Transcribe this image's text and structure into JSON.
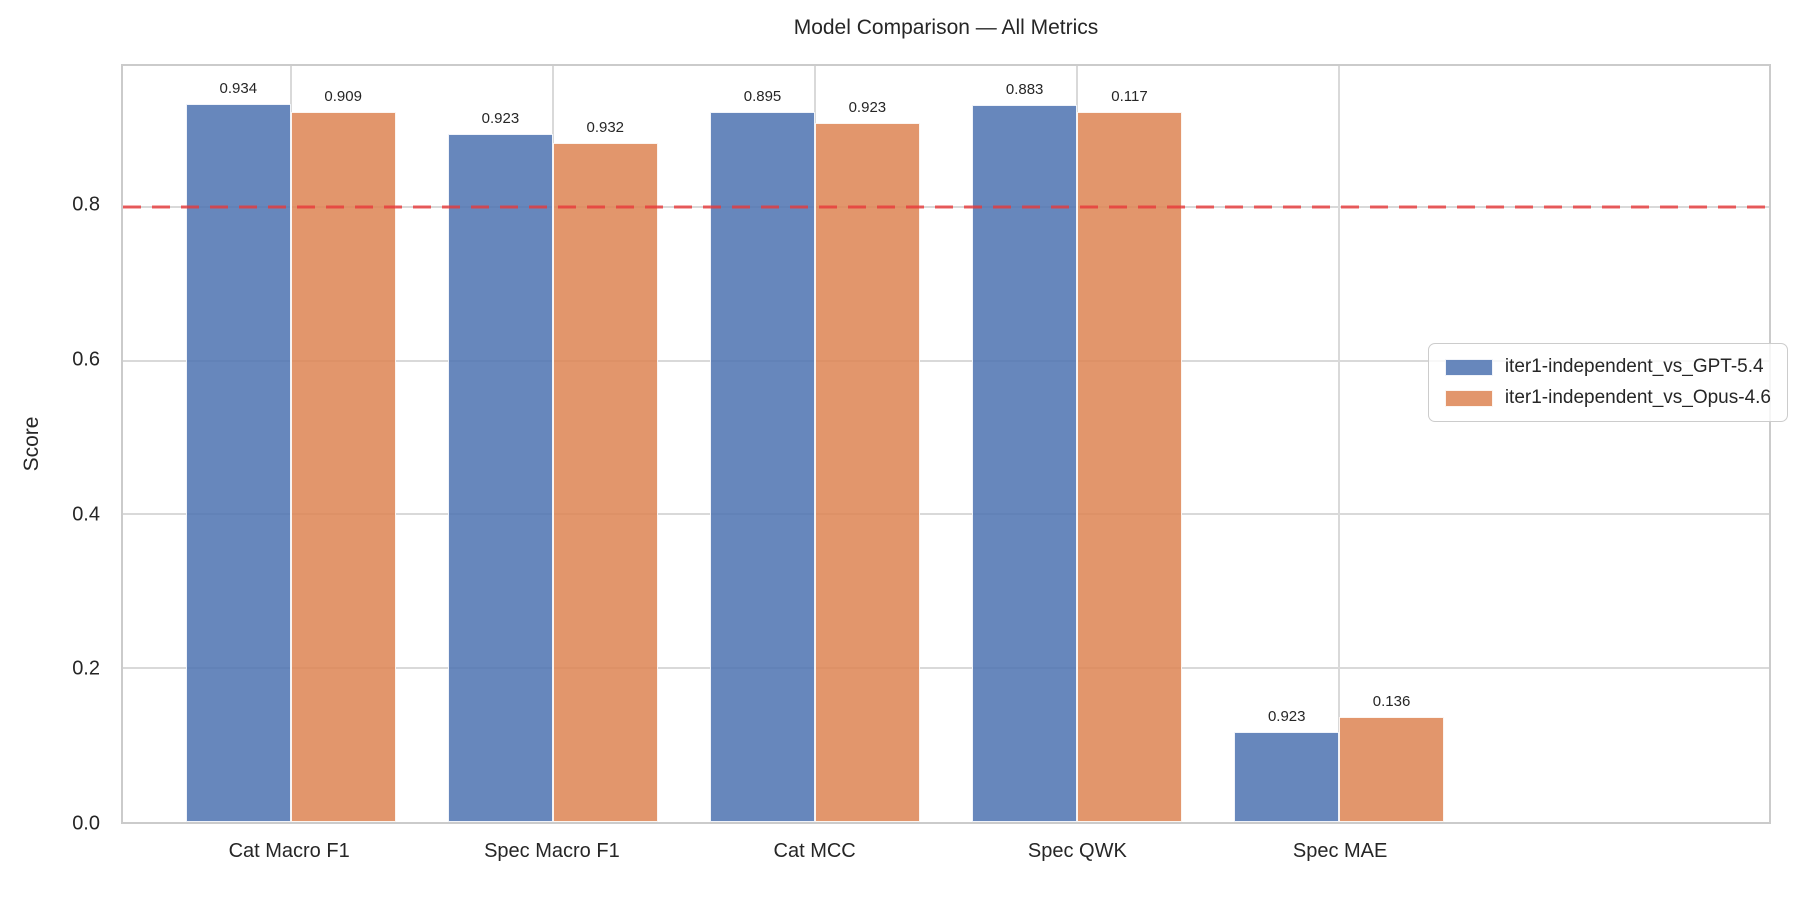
{
  "chart_data": {
    "type": "bar",
    "title": "Model Comparison — All Metrics",
    "xlabel": "",
    "ylabel": "Score",
    "categories": [
      "Cat Macro F1",
      "Spec Macro F1",
      "Cat MCC",
      "Spec QWK",
      "Spec MAE"
    ],
    "series": [
      {
        "name": "iter1-independent_vs_GPT-5.4",
        "color": "#4C72B0",
        "values": [
          0.934,
          0.895,
          0.923,
          0.932,
          0.117
        ]
      },
      {
        "name": "iter1-independent_vs_Opus-4.6",
        "color": "#DD8452",
        "values": [
          0.923,
          0.883,
          0.909,
          0.923,
          0.136
        ]
      }
    ],
    "bar_alpha": 0.85,
    "value_labels": [
      "0.934",
      "0.923",
      "0.895",
      "0.883",
      "0.923",
      "0.909",
      "0.932",
      "0.923",
      "0.117",
      "0.136"
    ],
    "yticks": [
      "0.0",
      "0.2",
      "0.4",
      "0.6",
      "0.8"
    ],
    "ylim": [
      0,
      0.983
    ],
    "grid": true,
    "legend_position": "center right",
    "reference_line": {
      "y": 0.8,
      "color": "#E8393A",
      "style": "dashed"
    }
  }
}
